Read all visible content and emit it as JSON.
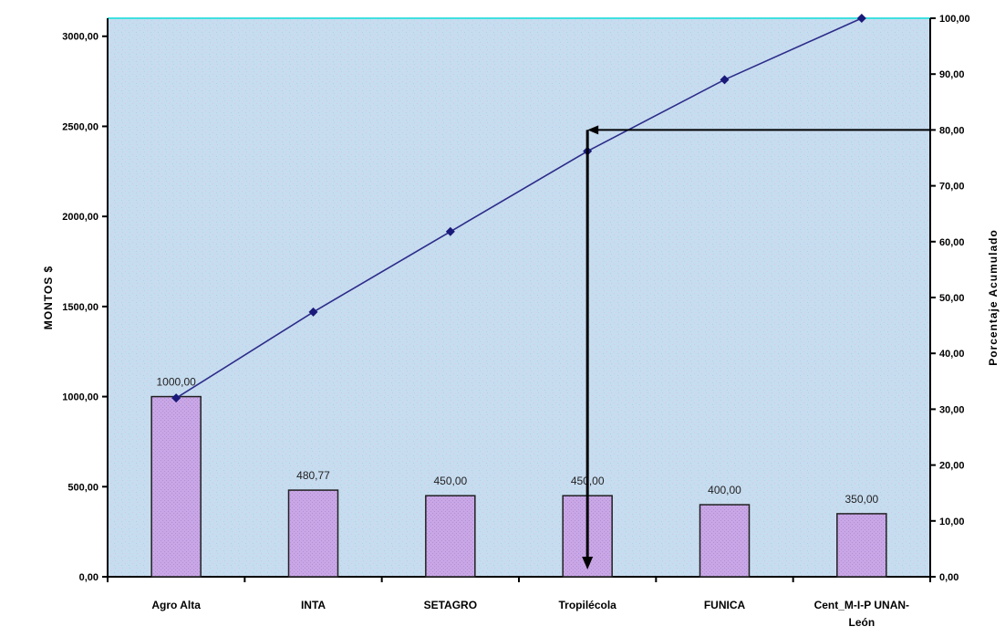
{
  "chart_data": {
    "type": "bar",
    "categories": [
      "Agro Alta",
      "INTA",
      "SETAGRO",
      "Tropilécola",
      "FUNICA",
      "Cent_M-I-P UNAN-León"
    ],
    "category_lines": [
      [
        "Agro Alta"
      ],
      [
        "INTA"
      ],
      [
        "SETAGRO"
      ],
      [
        "Tropilécola"
      ],
      [
        "FUNICA"
      ],
      [
        "Cent_M-I-P UNAN-",
        "León"
      ]
    ],
    "series": [
      {
        "values": [
          1000.0,
          480.77,
          450.0,
          450.0,
          400.0,
          350.0
        ]
      },
      {
        "values": [
          32.0,
          47.4,
          61.8,
          76.2,
          89.0,
          100.0
        ]
      }
    ],
    "data_labels": [
      "1000,00",
      "480,77",
      "450,00",
      "450,00",
      "400,00",
      "350,00"
    ],
    "ylabel": "MONTOS $",
    "y2label": "Porcentaje Acumulado",
    "ylim": [
      0,
      3100
    ],
    "y2lim": [
      0,
      100
    ],
    "yticks": [
      {
        "value": 0,
        "label": "0,00"
      },
      {
        "value": 500,
        "label": "500,00"
      },
      {
        "value": 1000,
        "label": "1000,00"
      },
      {
        "value": 1500,
        "label": "1500,00"
      },
      {
        "value": 2000,
        "label": "2000,00"
      },
      {
        "value": 2500,
        "label": "2500,00"
      },
      {
        "value": 3000,
        "label": "3000,00"
      }
    ],
    "y2ticks": [
      {
        "value": 0,
        "label": "0,00"
      },
      {
        "value": 10,
        "label": "10,00"
      },
      {
        "value": 20,
        "label": "20,00"
      },
      {
        "value": 30,
        "label": "30,00"
      },
      {
        "value": 40,
        "label": "40,00"
      },
      {
        "value": 50,
        "label": "50,00"
      },
      {
        "value": 60,
        "label": "60,00"
      },
      {
        "value": 70,
        "label": "70,00"
      },
      {
        "value": 80,
        "label": "80,00"
      },
      {
        "value": 90,
        "label": "90,00"
      },
      {
        "value": 100,
        "label": "100,00"
      }
    ],
    "annotation": {
      "y2": 80,
      "x_category_index": 3.5
    },
    "colors": {
      "plot_bg": "#c6dcef",
      "bar_fill": "#c9a7e6",
      "bar_stroke": "#202020",
      "line": "#2c2c8a",
      "marker": "#1a1a7a",
      "top_border": "#40e0e0"
    }
  }
}
